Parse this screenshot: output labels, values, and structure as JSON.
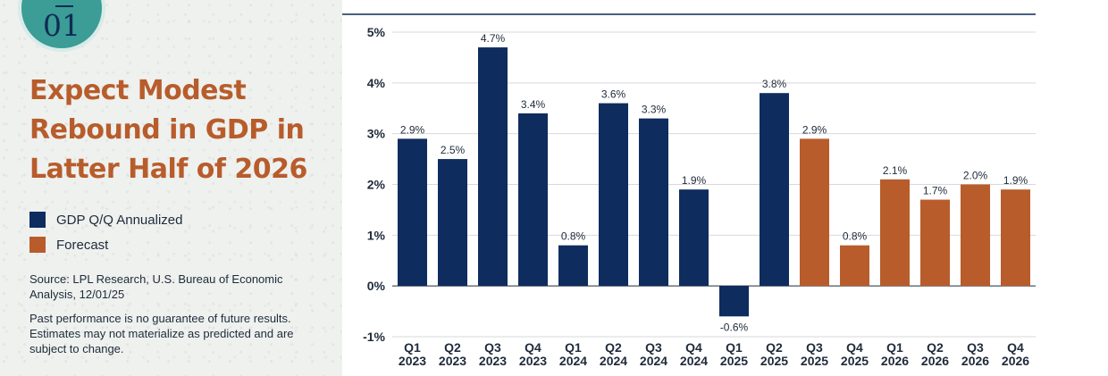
{
  "badge": {
    "number": "01"
  },
  "title": "Expect Modest Rebound in GDP in Latter Half of 2026",
  "legend": [
    {
      "label": "GDP Q/Q Annualized",
      "color": "#0f2c5e"
    },
    {
      "label": "Forecast",
      "color": "#b85c2c"
    }
  ],
  "source": "Source: LPL Research, U.S. Bureau of Economic Analysis, 12/01/25",
  "disclaimer": "Past performance is no guarantee of future results. Estimates may not materialize as predicted and are subject to change.",
  "colors": {
    "actual": "#0f2c5e",
    "forecast": "#b85c2c",
    "axis": "#1f2a3a",
    "grid": "#d6d9de",
    "rule": "#0f2c55"
  },
  "chart_data": {
    "type": "bar",
    "title": "Expect Modest Rebound in GDP in Latter Half of 2026",
    "xlabel": "",
    "ylabel": "",
    "ylim": [
      -1,
      5
    ],
    "yticks": [
      -1,
      0,
      1,
      2,
      3,
      4,
      5
    ],
    "ytick_labels": [
      "-1%",
      "0%",
      "1%",
      "2%",
      "3%",
      "4%",
      "5%"
    ],
    "grid": true,
    "categories": [
      "Q1 2023",
      "Q2 2023",
      "Q3 2023",
      "Q4 2023",
      "Q1 2024",
      "Q2 2024",
      "Q3 2024",
      "Q4 2024",
      "Q1 2025",
      "Q2 2025",
      "Q3 2025",
      "Q4 2025",
      "Q1 2026",
      "Q2 2026",
      "Q3 2026",
      "Q4 2026"
    ],
    "category_lines": [
      [
        "Q1",
        "2023"
      ],
      [
        "Q2",
        "2023"
      ],
      [
        "Q3",
        "2023"
      ],
      [
        "Q4",
        "2023"
      ],
      [
        "Q1",
        "2024"
      ],
      [
        "Q2",
        "2024"
      ],
      [
        "Q3",
        "2024"
      ],
      [
        "Q4",
        "2024"
      ],
      [
        "Q1",
        "2025"
      ],
      [
        "Q2",
        "2025"
      ],
      [
        "Q3",
        "2025"
      ],
      [
        "Q4",
        "2025"
      ],
      [
        "Q1",
        "2026"
      ],
      [
        "Q2",
        "2026"
      ],
      [
        "Q3",
        "2026"
      ],
      [
        "Q4",
        "2026"
      ]
    ],
    "values": [
      2.9,
      2.5,
      4.7,
      3.4,
      0.8,
      3.6,
      3.3,
      1.9,
      -0.6,
      3.8,
      2.9,
      0.8,
      2.1,
      1.7,
      2.0,
      1.9
    ],
    "value_labels": [
      "2.9%",
      "2.5%",
      "4.7%",
      "3.4%",
      "0.8%",
      "3.6%",
      "3.3%",
      "1.9%",
      "-0.6%",
      "3.8%",
      "2.9%",
      "0.8%",
      "2.1%",
      "1.7%",
      "2.0%",
      "1.9%"
    ],
    "series_kind": [
      "GDP Q/Q Annualized",
      "GDP Q/Q Annualized",
      "GDP Q/Q Annualized",
      "GDP Q/Q Annualized",
      "GDP Q/Q Annualized",
      "GDP Q/Q Annualized",
      "GDP Q/Q Annualized",
      "GDP Q/Q Annualized",
      "GDP Q/Q Annualized",
      "GDP Q/Q Annualized",
      "Forecast",
      "Forecast",
      "Forecast",
      "Forecast",
      "Forecast",
      "Forecast"
    ]
  }
}
